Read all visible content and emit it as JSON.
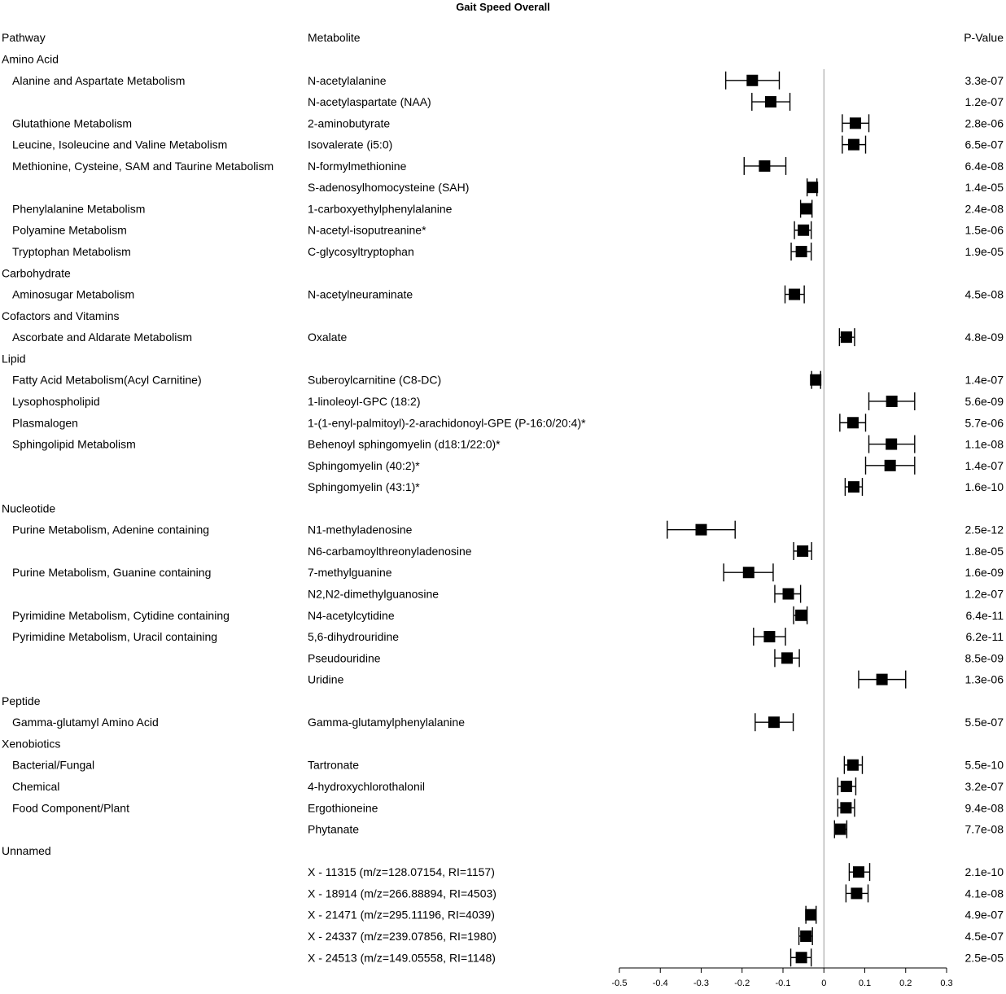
{
  "chart_data": {
    "type": "forest",
    "title": "Gait Speed Overall",
    "column_headers": {
      "pathway": "Pathway",
      "metabolite": "Metabolite",
      "pvalue": "P-Value"
    },
    "xlim": [
      -0.5,
      0.3
    ],
    "x_ticks": [
      "-0.5",
      "-0.4",
      "-0.3",
      "-0.2",
      "-0.1",
      "0",
      "0.1",
      "0.2",
      "0.3"
    ],
    "x_tick_values": [
      -0.5,
      -0.4,
      -0.3,
      -0.2,
      -0.1,
      0,
      0.1,
      0.2,
      0.3
    ],
    "reference_line": 0,
    "rows": [
      {
        "kind": "category",
        "pathway": "Amino Acid"
      },
      {
        "kind": "item",
        "pathway": "Alanine and Aspartate Metabolism",
        "metabolite": "N-acetylalanine",
        "estimate": -0.175,
        "lower": -0.24,
        "upper": -0.109,
        "p": "3.3e-07"
      },
      {
        "kind": "item",
        "pathway": "",
        "metabolite": "N-acetylaspartate (NAA)",
        "estimate": -0.13,
        "lower": -0.176,
        "upper": -0.083,
        "p": "1.2e-07"
      },
      {
        "kind": "item",
        "pathway": "Glutathione Metabolism",
        "metabolite": "2-aminobutyrate",
        "estimate": 0.077,
        "lower": 0.045,
        "upper": 0.11,
        "p": "2.8e-06"
      },
      {
        "kind": "item",
        "pathway": "Leucine, Isoleucine and Valine Metabolism",
        "metabolite": "Isovalerate (i5:0)",
        "estimate": 0.073,
        "lower": 0.045,
        "upper": 0.102,
        "p": "6.5e-07"
      },
      {
        "kind": "item",
        "pathway": "Methionine, Cysteine, SAM and Taurine Metabolism",
        "metabolite": "N-formylmethionine",
        "estimate": -0.145,
        "lower": -0.195,
        "upper": -0.093,
        "p": "6.4e-08"
      },
      {
        "kind": "item",
        "pathway": "",
        "metabolite": "S-adenosylhomocysteine (SAH)",
        "estimate": -0.028,
        "lower": -0.041,
        "upper": -0.017,
        "p": "1.4e-05"
      },
      {
        "kind": "item",
        "pathway": "Phenylalanine Metabolism",
        "metabolite": "1-carboxyethylphenylalanine",
        "estimate": -0.043,
        "lower": -0.057,
        "upper": -0.029,
        "p": "2.4e-08"
      },
      {
        "kind": "item",
        "pathway": "Polyamine Metabolism",
        "metabolite": "N-acetyl-isoputreanine*",
        "estimate": -0.05,
        "lower": -0.072,
        "upper": -0.031,
        "p": "1.5e-06"
      },
      {
        "kind": "item",
        "pathway": "Tryptophan Metabolism",
        "metabolite": "C-glycosyltryptophan",
        "estimate": -0.055,
        "lower": -0.08,
        "upper": -0.031,
        "p": "1.9e-05"
      },
      {
        "kind": "category",
        "pathway": "Carbohydrate"
      },
      {
        "kind": "item",
        "pathway": "Aminosugar Metabolism",
        "metabolite": "N-acetylneuraminate",
        "estimate": -0.072,
        "lower": -0.095,
        "upper": -0.048,
        "p": "4.5e-08"
      },
      {
        "kind": "category",
        "pathway": "Cofactors and Vitamins"
      },
      {
        "kind": "item",
        "pathway": "Ascorbate and Aldarate Metabolism",
        "metabolite": "Oxalate",
        "estimate": 0.055,
        "lower": 0.038,
        "upper": 0.075,
        "p": "4.8e-09"
      },
      {
        "kind": "category",
        "pathway": "Lipid"
      },
      {
        "kind": "item",
        "pathway": "Fatty Acid Metabolism(Acyl Carnitine)",
        "metabolite": "Suberoylcarnitine (C8-DC)",
        "estimate": -0.02,
        "lower": -0.03,
        "upper": -0.008,
        "p": "1.4e-07"
      },
      {
        "kind": "item",
        "pathway": "Lysophospholipid",
        "metabolite": "1-linoleoyl-GPC (18:2)",
        "estimate": 0.166,
        "lower": 0.11,
        "upper": 0.222,
        "p": "5.6e-09"
      },
      {
        "kind": "item",
        "pathway": "Plasmalogen",
        "metabolite": "1-(1-enyl-palmitoyl)-2-arachidonoyl-GPE (P-16:0/20:4)*",
        "estimate": 0.071,
        "lower": 0.039,
        "upper": 0.102,
        "p": "5.7e-06"
      },
      {
        "kind": "item",
        "pathway": "Sphingolipid Metabolism",
        "metabolite": "Behenoyl sphingomyelin (d18:1/22:0)*",
        "estimate": 0.165,
        "lower": 0.11,
        "upper": 0.222,
        "p": "1.1e-08"
      },
      {
        "kind": "item",
        "pathway": "",
        "metabolite": "Sphingomyelin (40:2)*",
        "estimate": 0.162,
        "lower": 0.102,
        "upper": 0.222,
        "p": "1.4e-07"
      },
      {
        "kind": "item",
        "pathway": "",
        "metabolite": "Sphingomyelin (43:1)*",
        "estimate": 0.073,
        "lower": 0.052,
        "upper": 0.094,
        "p": "1.6e-10"
      },
      {
        "kind": "category",
        "pathway": "Nucleotide"
      },
      {
        "kind": "item",
        "pathway": "Purine Metabolism, Adenine containing",
        "metabolite": "N1-methyladenosine",
        "estimate": -0.3,
        "lower": -0.383,
        "upper": -0.217,
        "p": "2.5e-12"
      },
      {
        "kind": "item",
        "pathway": "",
        "metabolite": "N6-carbamoylthreonyladenosine",
        "estimate": -0.052,
        "lower": -0.074,
        "upper": -0.03,
        "p": "1.8e-05"
      },
      {
        "kind": "item",
        "pathway": "Purine Metabolism, Guanine containing",
        "metabolite": "7-methylguanine",
        "estimate": -0.184,
        "lower": -0.245,
        "upper": -0.124,
        "p": "1.6e-09"
      },
      {
        "kind": "item",
        "pathway": "",
        "metabolite": "N2,N2-dimethylguanosine",
        "estimate": -0.087,
        "lower": -0.12,
        "upper": -0.057,
        "p": "1.2e-07"
      },
      {
        "kind": "item",
        "pathway": "Pyrimidine Metabolism, Cytidine containing",
        "metabolite": "N4-acetylcytidine",
        "estimate": -0.056,
        "lower": -0.074,
        "upper": -0.041,
        "p": "6.4e-11"
      },
      {
        "kind": "item",
        "pathway": "Pyrimidine Metabolism, Uracil containing",
        "metabolite": "5,6-dihydrouridine",
        "estimate": -0.133,
        "lower": -0.172,
        "upper": -0.094,
        "p": "6.2e-11"
      },
      {
        "kind": "item",
        "pathway": "",
        "metabolite": "Pseudouridine",
        "estimate": -0.09,
        "lower": -0.12,
        "upper": -0.06,
        "p": "8.5e-09"
      },
      {
        "kind": "item",
        "pathway": "",
        "metabolite": "Uridine",
        "estimate": 0.142,
        "lower": 0.085,
        "upper": 0.2,
        "p": "1.3e-06"
      },
      {
        "kind": "category",
        "pathway": "Peptide"
      },
      {
        "kind": "item",
        "pathway": "Gamma-glutamyl Amino Acid",
        "metabolite": "Gamma-glutamylphenylalanine",
        "estimate": -0.122,
        "lower": -0.168,
        "upper": -0.075,
        "p": "5.5e-07"
      },
      {
        "kind": "category",
        "pathway": "Xenobiotics"
      },
      {
        "kind": "item",
        "pathway": "Bacterial/Fungal",
        "metabolite": "Tartronate",
        "estimate": 0.071,
        "lower": 0.05,
        "upper": 0.094,
        "p": "5.5e-10"
      },
      {
        "kind": "item",
        "pathway": "Chemical",
        "metabolite": "4-hydroxychlorothalonil",
        "estimate": 0.055,
        "lower": 0.034,
        "upper": 0.078,
        "p": "3.2e-07"
      },
      {
        "kind": "item",
        "pathway": "Food Component/Plant",
        "metabolite": "Ergothioneine",
        "estimate": 0.054,
        "lower": 0.034,
        "upper": 0.075,
        "p": "9.4e-08"
      },
      {
        "kind": "item",
        "pathway": "",
        "metabolite": "Phytanate",
        "estimate": 0.04,
        "lower": 0.026,
        "upper": 0.056,
        "p": "7.7e-08"
      },
      {
        "kind": "category",
        "pathway": "Unnamed"
      },
      {
        "kind": "item",
        "pathway": "",
        "metabolite": "X - 11315 (m/z=128.07154, RI=1157)",
        "estimate": 0.085,
        "lower": 0.062,
        "upper": 0.112,
        "p": "2.1e-10"
      },
      {
        "kind": "item",
        "pathway": "",
        "metabolite": "X - 18914 (m/z=266.88894, RI=4503)",
        "estimate": 0.08,
        "lower": 0.054,
        "upper": 0.108,
        "p": "4.1e-08"
      },
      {
        "kind": "item",
        "pathway": "",
        "metabolite": "X - 21471 (m/z=295.11196, RI=4039)",
        "estimate": -0.032,
        "lower": -0.044,
        "upper": -0.019,
        "p": "4.9e-07"
      },
      {
        "kind": "item",
        "pathway": "",
        "metabolite": "X - 24337 (m/z=239.07856, RI=1980)",
        "estimate": -0.044,
        "lower": -0.061,
        "upper": -0.028,
        "p": "4.5e-07"
      },
      {
        "kind": "item",
        "pathway": "",
        "metabolite": "X - 24513 (m/z=149.05558, RI=1148)",
        "estimate": -0.055,
        "lower": -0.081,
        "upper": -0.031,
        "p": "2.5e-05"
      }
    ]
  }
}
